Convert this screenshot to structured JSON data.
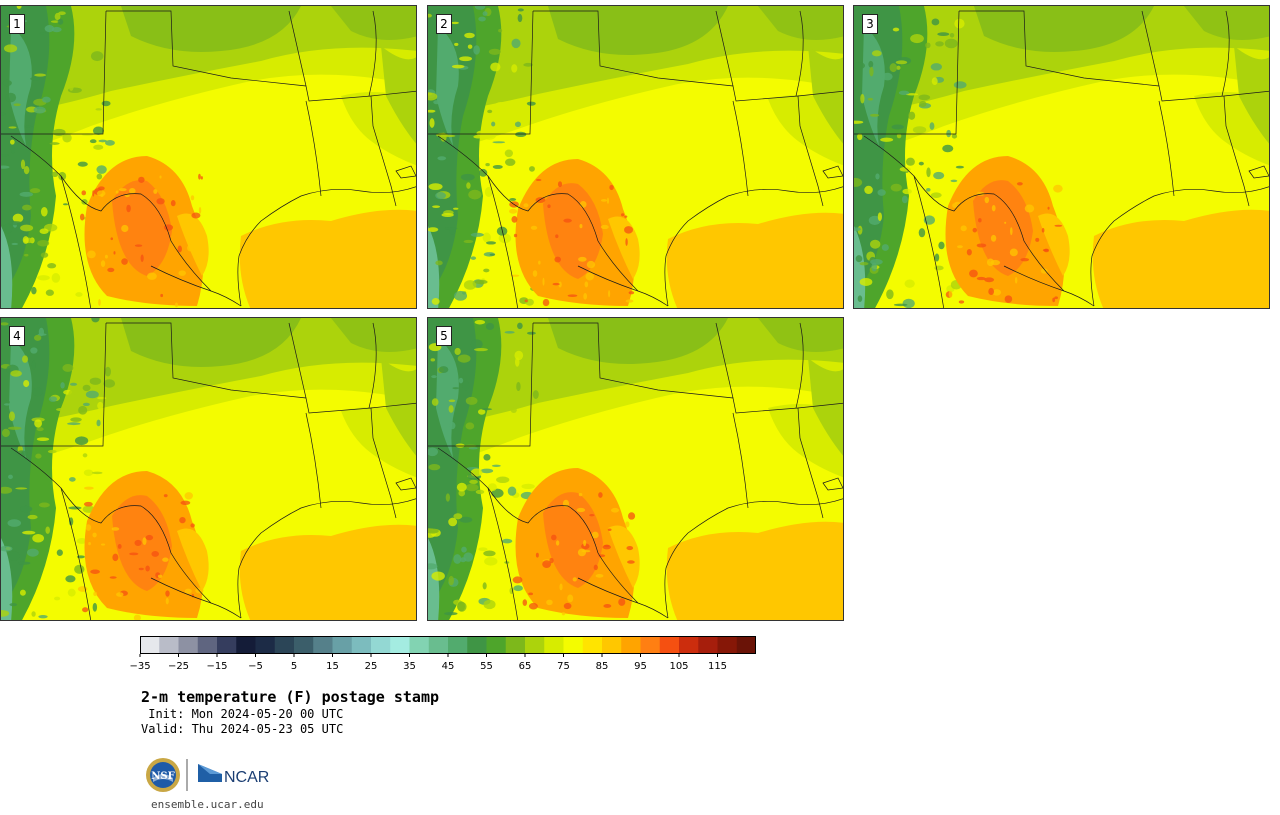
{
  "panels": [
    {
      "number": "1",
      "variant": 0
    },
    {
      "number": "2",
      "variant": 1
    },
    {
      "number": "3",
      "variant": 2
    },
    {
      "number": "4",
      "variant": 3
    },
    {
      "number": "5",
      "variant": 4
    }
  ],
  "colorbar": {
    "colors": [
      "#e6e8ec",
      "#b9bcc8",
      "#8d91a3",
      "#5f6580",
      "#353d5e",
      "#141c38",
      "#1c2b46",
      "#2b4557",
      "#3b5e6a",
      "#55808a",
      "#68a0a6",
      "#7cbcbe",
      "#93d8d3",
      "#a4ece1",
      "#82d3b2",
      "#69bd8f",
      "#52ab6e",
      "#3f9545",
      "#4ea52b",
      "#7db81b",
      "#acd30c",
      "#d7ec00",
      "#f4fc00",
      "#ffe400",
      "#ffc700",
      "#ffa400",
      "#ff7f12",
      "#f55011",
      "#cc2d0d",
      "#a61e0c",
      "#861707",
      "#6a1307"
    ],
    "tick_labels": [
      "−35",
      "−25",
      "−15",
      "−5",
      "5",
      "15",
      "25",
      "35",
      "45",
      "55",
      "65",
      "75",
      "85",
      "95",
      "105",
      "115"
    ]
  },
  "title": "2-m temperature (F) postage stamp",
  "init_line": " Init: Mon 2024-05-20 00 UTC",
  "valid_line": "Valid: Thu 2024-05-23 05 UTC",
  "logo": {
    "left_name": "NSF",
    "right_name": "NCAR"
  },
  "url": "ensemble.ucar.edu"
}
